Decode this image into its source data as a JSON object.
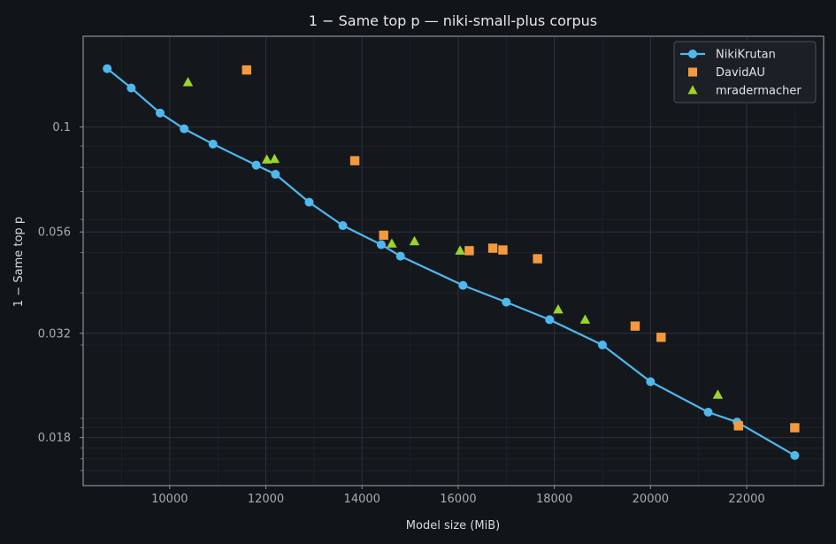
{
  "chart_data": {
    "type": "scatter",
    "title": "1 − Same top p — niki-small-plus corpus",
    "xlabel": "Model size (MiB)",
    "ylabel": "1 − Same top p",
    "x_scale": "linear",
    "y_scale": "log",
    "xlim": [
      8200,
      23600
    ],
    "ylim": [
      0.0138,
      0.165
    ],
    "xticks": [
      10000,
      12000,
      14000,
      16000,
      18000,
      20000,
      22000
    ],
    "xtick_labels": [
      "10000",
      "12000",
      "14000",
      "16000",
      "18000",
      "20000",
      "22000"
    ],
    "yticks": [
      0.018,
      0.032,
      0.056,
      0.1
    ],
    "ytick_labels": [
      "0.018",
      "0.032",
      "0.056",
      "0.1"
    ],
    "grid": true,
    "legend_position": "top-right",
    "series": [
      {
        "name": "NikiKrutan",
        "style": "line-marker",
        "marker": "circle",
        "color": "#4fb8ee",
        "x": [
          8700,
          9200,
          9800,
          10300,
          10900,
          11800,
          12200,
          12900,
          13600,
          14400,
          14800,
          16100,
          17000,
          17900,
          19000,
          20000,
          21200,
          21800,
          23000
        ],
        "y": [
          0.138,
          0.124,
          0.108,
          0.099,
          0.091,
          0.081,
          0.077,
          0.066,
          0.058,
          0.0522,
          0.049,
          0.0417,
          0.038,
          0.0345,
          0.03,
          0.0245,
          0.0207,
          0.0196,
          0.0163
        ]
      },
      {
        "name": "DavidAU",
        "style": "marker",
        "marker": "square",
        "color": "#f59a3c",
        "x": [
          11600,
          13850,
          14450,
          16230,
          16720,
          16930,
          17650,
          19680,
          20220,
          21830,
          23000
        ],
        "y": [
          0.137,
          0.083,
          0.055,
          0.0505,
          0.0512,
          0.0507,
          0.0483,
          0.0333,
          0.0313,
          0.0192,
          0.019
        ]
      },
      {
        "name": "mradermacher",
        "style": "marker",
        "marker": "triangle",
        "color": "#9bd42a",
        "x": [
          10380,
          12020,
          12180,
          14620,
          15090,
          16040,
          18080,
          18640,
          21400
        ],
        "y": [
          0.128,
          0.0835,
          0.0838,
          0.0525,
          0.0532,
          0.0505,
          0.0365,
          0.0345,
          0.0228
        ]
      }
    ]
  }
}
